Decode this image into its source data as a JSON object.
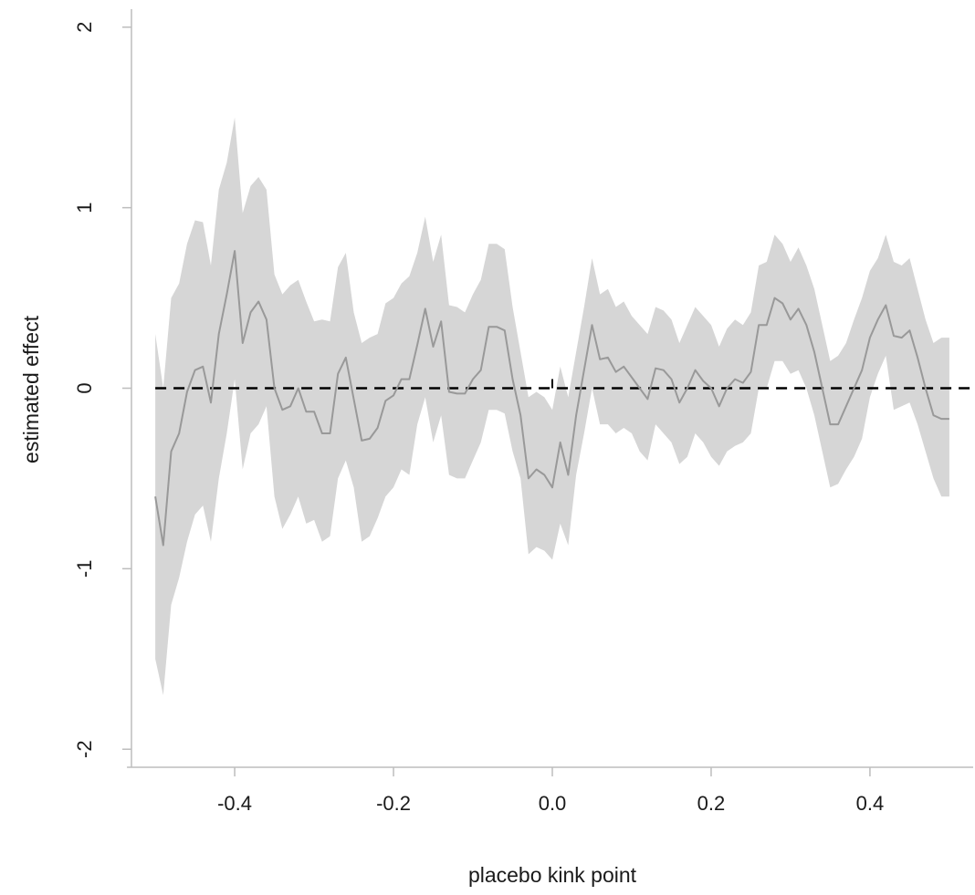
{
  "chart_data": {
    "type": "line",
    "title": "",
    "xlabel": "placebo kink point",
    "ylabel": "estimated effect",
    "xlim": [
      -0.53,
      0.53
    ],
    "ylim": [
      -2.1,
      2.1
    ],
    "grid": false,
    "legend": "none",
    "x_ticks": [
      -0.4,
      -0.2,
      0.0,
      0.2,
      0.4
    ],
    "x_tick_labels": [
      "-0.4",
      "-0.2",
      "0.0",
      "0.2",
      "0.4"
    ],
    "y_ticks": [
      -2,
      -1,
      0,
      1,
      2
    ],
    "y_tick_labels": [
      "-2",
      "-1",
      "0",
      "1",
      "2"
    ],
    "reference_line": {
      "y": 0,
      "style": "dashed",
      "color": "#000000"
    },
    "colors": {
      "estimate": "#999999",
      "band": "#d6d6d6",
      "axis": "#bdbdbd"
    },
    "series": [
      {
        "x": [
          -0.5,
          -0.49,
          -0.48,
          -0.47,
          -0.46,
          -0.45,
          -0.44,
          -0.43,
          -0.42,
          -0.41,
          -0.4,
          -0.39,
          -0.38,
          -0.37,
          -0.36,
          -0.35,
          -0.34,
          -0.33,
          -0.32,
          -0.31,
          -0.3,
          -0.29,
          -0.28,
          -0.27,
          -0.26,
          -0.25,
          -0.24,
          -0.23,
          -0.22,
          -0.21,
          -0.2,
          -0.19,
          -0.18,
          -0.17,
          -0.16,
          -0.15,
          -0.14,
          -0.13,
          -0.12,
          -0.11,
          -0.1,
          -0.09,
          -0.08,
          -0.07,
          -0.06,
          -0.05,
          -0.04,
          -0.03,
          -0.02,
          -0.01,
          0.0,
          0.01,
          0.02,
          0.03,
          0.04,
          0.05,
          0.06,
          0.07,
          0.08,
          0.09,
          0.1,
          0.11,
          0.12,
          0.13,
          0.14,
          0.15,
          0.16,
          0.17,
          0.18,
          0.19,
          0.2,
          0.21,
          0.22,
          0.23,
          0.24,
          0.25,
          0.26,
          0.27,
          0.28,
          0.29,
          0.3,
          0.31,
          0.32,
          0.33,
          0.34,
          0.35,
          0.36,
          0.37,
          0.38,
          0.39,
          0.4,
          0.41,
          0.42,
          0.43,
          0.44,
          0.45,
          0.46,
          0.47,
          0.48,
          0.49,
          0.5
        ],
        "values": [
          -0.6,
          -0.87,
          -0.35,
          -0.25,
          -0.02,
          0.1,
          0.12,
          -0.08,
          0.3,
          0.52,
          0.76,
          0.25,
          0.42,
          0.48,
          0.38,
          0.0,
          -0.12,
          -0.1,
          0.0,
          -0.13,
          -0.13,
          -0.25,
          -0.25,
          0.08,
          0.17,
          -0.06,
          -0.29,
          -0.28,
          -0.22,
          -0.07,
          -0.04,
          0.05,
          0.05,
          0.24,
          0.44,
          0.23,
          0.37,
          -0.02,
          -0.03,
          -0.03,
          0.05,
          0.1,
          0.34,
          0.34,
          0.32,
          0.05,
          -0.15,
          -0.5,
          -0.45,
          -0.48,
          -0.55,
          -0.3,
          -0.48,
          -0.15,
          0.1,
          0.35,
          0.16,
          0.17,
          0.09,
          0.12,
          0.06,
          0.0,
          -0.06,
          0.11,
          0.1,
          0.05,
          -0.08,
          0.0,
          0.1,
          0.04,
          0.0,
          -0.1,
          0.0,
          0.05,
          0.03,
          0.09,
          0.35,
          0.35,
          0.5,
          0.47,
          0.38,
          0.44,
          0.35,
          0.2,
          0.0,
          -0.2,
          -0.2,
          -0.1,
          0.0,
          0.1,
          0.28,
          0.38,
          0.46,
          0.29,
          0.28,
          0.32,
          0.17,
          0.0,
          -0.15,
          -0.17,
          -0.17
        ],
        "lower": [
          -1.5,
          -1.7,
          -1.2,
          -1.05,
          -0.85,
          -0.7,
          -0.65,
          -0.85,
          -0.5,
          -0.25,
          0.05,
          -0.45,
          -0.25,
          -0.2,
          -0.1,
          -0.6,
          -0.78,
          -0.7,
          -0.6,
          -0.75,
          -0.73,
          -0.85,
          -0.82,
          -0.5,
          -0.4,
          -0.55,
          -0.85,
          -0.82,
          -0.72,
          -0.6,
          -0.55,
          -0.45,
          -0.48,
          -0.2,
          -0.05,
          -0.3,
          -0.15,
          -0.48,
          -0.5,
          -0.5,
          -0.4,
          -0.3,
          -0.12,
          -0.12,
          -0.14,
          -0.35,
          -0.5,
          -0.92,
          -0.88,
          -0.9,
          -0.95,
          -0.75,
          -0.87,
          -0.48,
          -0.25,
          0.0,
          -0.2,
          -0.2,
          -0.25,
          -0.22,
          -0.25,
          -0.35,
          -0.4,
          -0.2,
          -0.25,
          -0.3,
          -0.42,
          -0.38,
          -0.25,
          -0.3,
          -0.38,
          -0.43,
          -0.35,
          -0.32,
          -0.3,
          -0.25,
          0.0,
          0.0,
          0.15,
          0.15,
          0.08,
          0.1,
          0.0,
          -0.15,
          -0.35,
          -0.55,
          -0.53,
          -0.45,
          -0.38,
          -0.28,
          -0.05,
          0.08,
          0.18,
          -0.12,
          -0.1,
          -0.08,
          -0.2,
          -0.35,
          -0.5,
          -0.6,
          -0.6
        ],
        "upper": [
          0.3,
          0.0,
          0.5,
          0.58,
          0.8,
          0.93,
          0.92,
          0.68,
          1.1,
          1.25,
          1.5,
          0.97,
          1.12,
          1.17,
          1.1,
          0.63,
          0.52,
          0.57,
          0.6,
          0.48,
          0.37,
          0.38,
          0.37,
          0.67,
          0.75,
          0.42,
          0.25,
          0.28,
          0.3,
          0.47,
          0.5,
          0.58,
          0.62,
          0.75,
          0.95,
          0.7,
          0.85,
          0.46,
          0.45,
          0.42,
          0.52,
          0.6,
          0.8,
          0.8,
          0.77,
          0.45,
          0.2,
          -0.05,
          -0.02,
          -0.05,
          -0.12,
          0.12,
          -0.05,
          0.2,
          0.45,
          0.72,
          0.52,
          0.55,
          0.45,
          0.48,
          0.4,
          0.35,
          0.3,
          0.45,
          0.43,
          0.38,
          0.25,
          0.35,
          0.45,
          0.4,
          0.35,
          0.23,
          0.33,
          0.38,
          0.35,
          0.42,
          0.68,
          0.7,
          0.85,
          0.8,
          0.7,
          0.78,
          0.68,
          0.55,
          0.35,
          0.15,
          0.18,
          0.25,
          0.38,
          0.5,
          0.65,
          0.72,
          0.85,
          0.7,
          0.68,
          0.72,
          0.55,
          0.38,
          0.25,
          0.28,
          0.28
        ]
      }
    ]
  }
}
